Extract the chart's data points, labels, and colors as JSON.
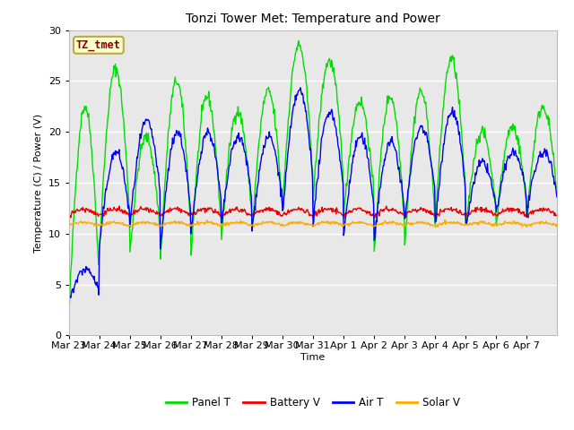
{
  "title": "Tonzi Tower Met: Temperature and Power",
  "ylabel": "Temperature (C) / Power (V)",
  "xlabel": "Time",
  "annotation": "TZ_tmet",
  "ylim": [
    0,
    30
  ],
  "plot_bg_color": "#e8e8e8",
  "fig_bg_color": "#ffffff",
  "grid_color": "#ffffff",
  "colors": {
    "panel_t": "#00dd00",
    "battery_v": "#ee0000",
    "air_t": "#0000ee",
    "solar_v": "#ffaa00"
  },
  "legend": [
    "Panel T",
    "Battery V",
    "Air T",
    "Solar V"
  ],
  "xtick_labels": [
    "Mar 23",
    "Mar 24",
    "Mar 25",
    "Mar 26",
    "Mar 27",
    "Mar 28",
    "Mar 29",
    "Mar 30",
    "Mar 31",
    "Apr 1",
    "Apr 2",
    "Apr 3",
    "Apr 4",
    "Apr 5",
    "Apr 6",
    "Apr 7"
  ],
  "annotation_bbox": {
    "facecolor": "#ffffcc",
    "edgecolor": "#bbaa44",
    "linewidth": 1.5
  },
  "line_width": 1.0,
  "panel_peaks": [
    22.5,
    26.2,
    19.5,
    25.0,
    23.5,
    22.0,
    24.0,
    28.5,
    27.0,
    23.0,
    23.5,
    24.0,
    27.2,
    20.0,
    20.5,
    22.5
  ],
  "panel_mins": [
    1.0,
    7.5,
    7.5,
    6.5,
    7.0,
    9.0,
    9.5,
    12.0,
    12.5,
    11.0,
    7.5,
    8.0,
    10.0,
    10.0,
    10.5,
    11.0
  ],
  "air_peaks": [
    6.5,
    18.0,
    21.0,
    20.0,
    20.0,
    19.5,
    19.5,
    24.0,
    22.0,
    19.5,
    19.0,
    20.5,
    22.0,
    17.0,
    18.0,
    18.0
  ],
  "air_mins": [
    3.0,
    8.0,
    10.0,
    7.5,
    9.0,
    10.0,
    9.5,
    11.0,
    10.0,
    9.0,
    8.5,
    10.5,
    10.0,
    10.0,
    11.5,
    11.5
  ],
  "battery_base": 11.8,
  "battery_amp": 0.6,
  "solar_base": 10.8,
  "solar_amp": 0.3,
  "pts_per_day": 48,
  "n_days": 16
}
